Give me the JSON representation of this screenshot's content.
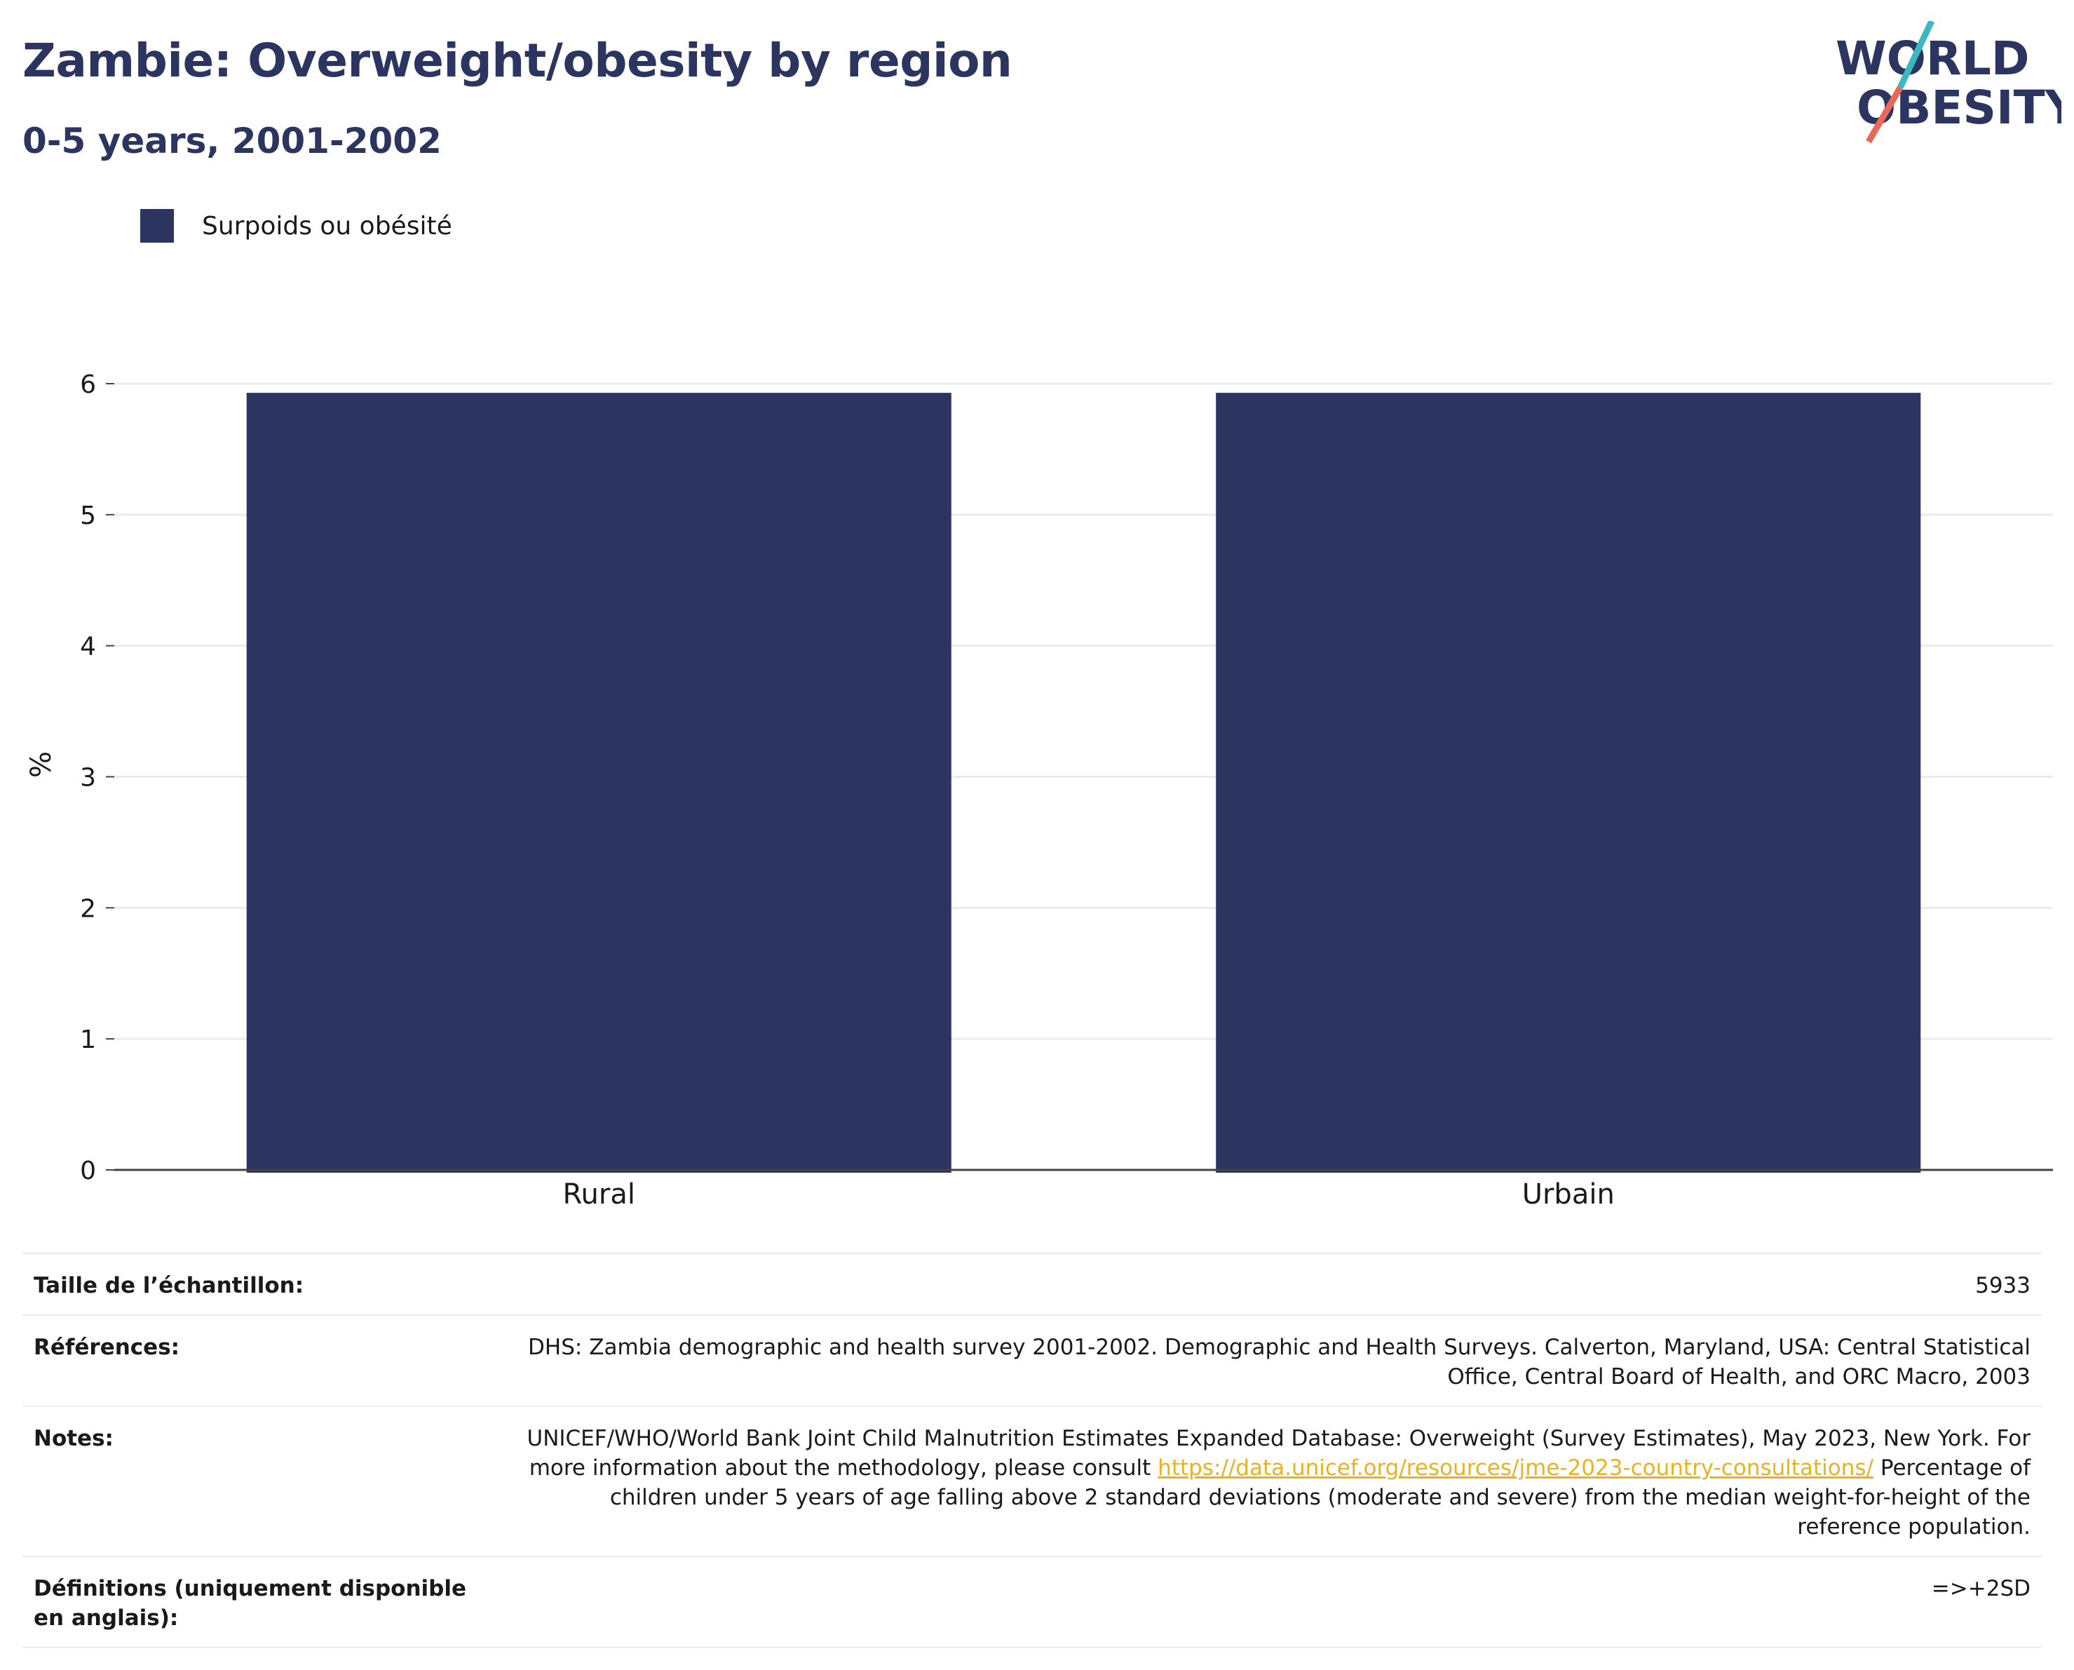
{
  "header": {
    "title": "Zambie: Overweight/obesity by region",
    "subtitle": "0-5 years, 2001-2002"
  },
  "logo": {
    "line1": "WORLD",
    "line2": "OBESITY",
    "colors": {
      "text": "#2b3560",
      "slash_teal": "#3bb8c0",
      "slash_red": "#e8685a"
    }
  },
  "colors": {
    "bar": "#2b3560",
    "grid": "#e9ecef",
    "axis": "#444444"
  },
  "chart_data": {
    "type": "bar",
    "categories": [
      "Rural",
      "Urbain"
    ],
    "series": [
      {
        "name": "Surpoids ou obésité",
        "values": [
          5.93,
          5.93
        ]
      }
    ],
    "ylabel": "%",
    "xlabel": "",
    "ylim": [
      0,
      6
    ],
    "yticks": [
      0,
      1,
      2,
      3,
      4,
      5,
      6
    ],
    "grid": true,
    "legend_position": "top-left"
  },
  "meta": {
    "sample_label": "Taille de l’échantillon:",
    "sample_value": "5933",
    "references_label": "Références:",
    "references_value": "DHS: Zambia demographic and health survey 2001-2002. Demographic and Health Surveys. Calverton, Maryland, USA: Central Statistical Office, Central Board of Health, and ORC Macro, 2003",
    "notes_label": "Notes:",
    "notes_before": "UNICEF/WHO/World Bank Joint Child Malnutrition Estimates Expanded Database: Overweight (Survey Estimates), May 2023, New York. For more information about the methodology, please consult ",
    "notes_link": "https://data.unicef.org/resources/jme-2023-country-consultations/",
    "notes_after": " Percentage of children under 5 years of age falling above 2 standard deviations (moderate and severe) from the median weight-for-height of the reference population.",
    "definitions_label": "Définitions (uniquement disponible en anglais):",
    "definitions_value": "=>+2SD"
  }
}
